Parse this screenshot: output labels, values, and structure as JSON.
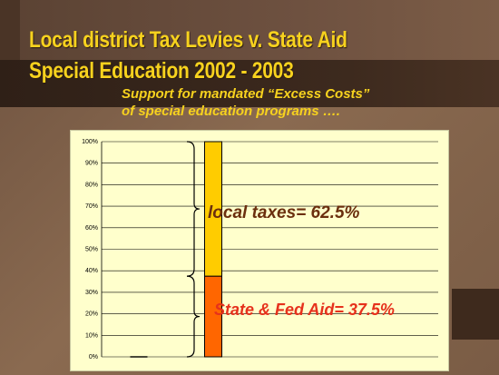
{
  "slide": {
    "title_line1": "Local district Tax Levies v. State Aid",
    "title_line2": "Special Education  2002 - 2003",
    "subtitle_line1": "Support for mandated “Excess Costs”",
    "subtitle_line2": "of special education programs …."
  },
  "chart_data": {
    "type": "bar",
    "stacked": true,
    "categories": [
      "",
      ""
    ],
    "series": [
      {
        "name": "State & Fed Aid",
        "values": [
          0,
          37.5
        ],
        "color": "#ff6600"
      },
      {
        "name": "local taxes",
        "values": [
          0,
          62.5
        ],
        "color": "#ffcc00"
      }
    ],
    "ylim": [
      0,
      100
    ],
    "yticks": [
      "0%",
      "10%",
      "20%",
      "30%",
      "40%",
      "50%",
      "60%",
      "70%",
      "80%",
      "90%",
      "100%"
    ],
    "grid": true,
    "annotations": [
      {
        "text": "local taxes=  62.5%",
        "color": "#6b2f0e"
      },
      {
        "text": "State & Fed Aid= 37.5%",
        "color": "#e6311c"
      }
    ]
  }
}
